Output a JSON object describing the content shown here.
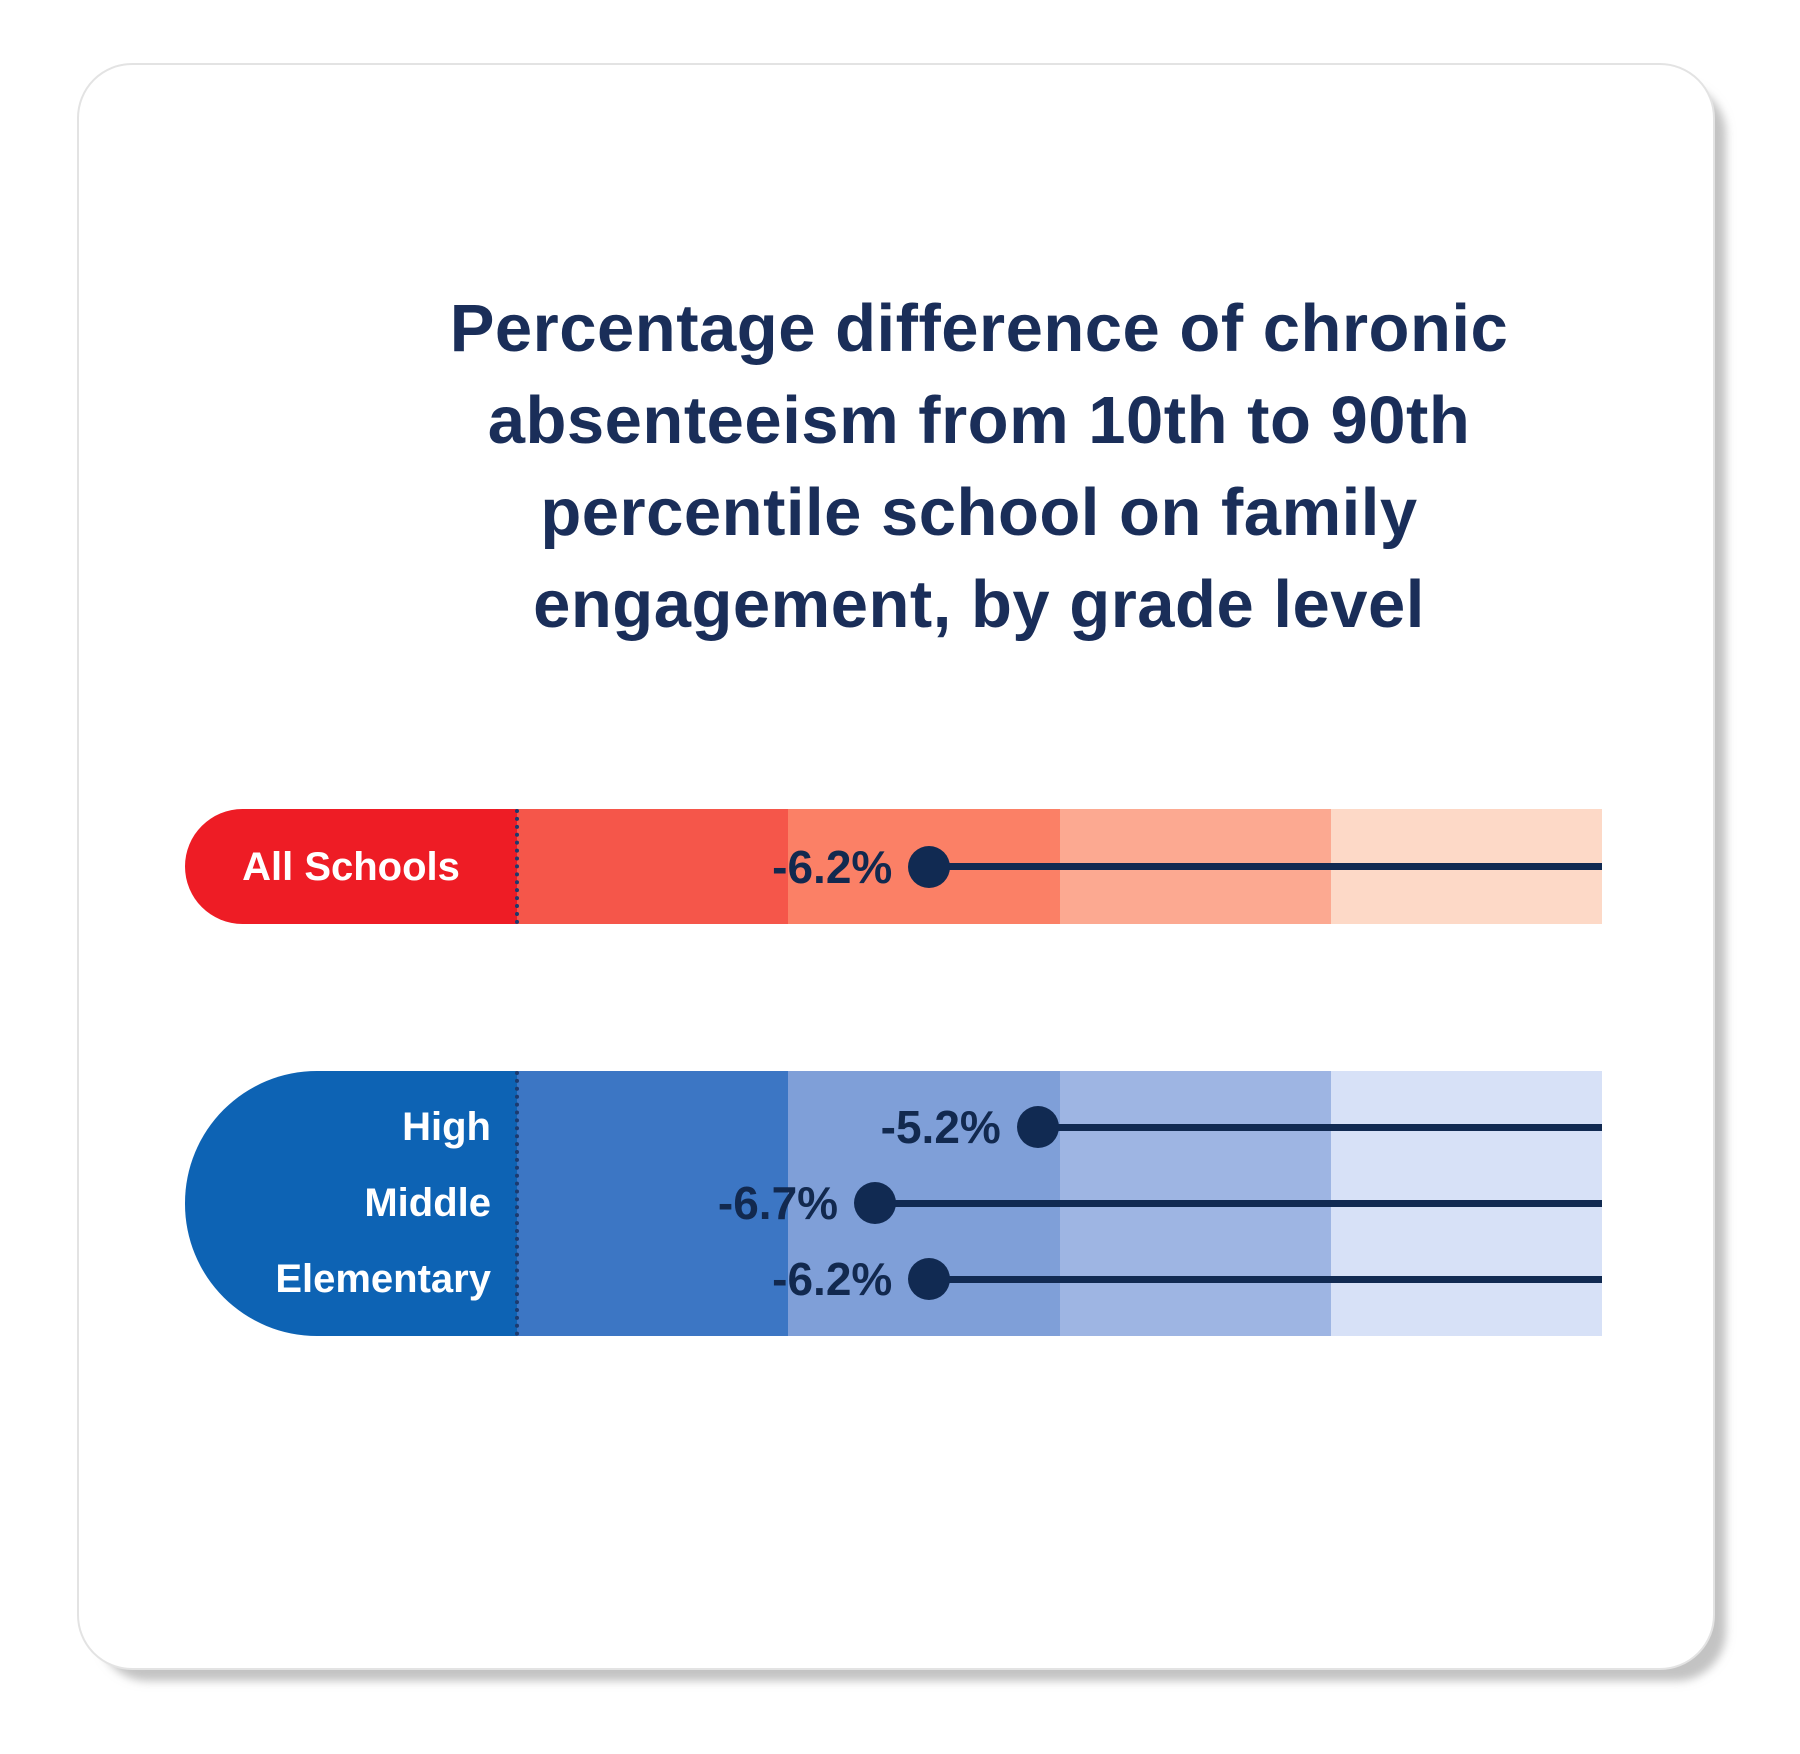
{
  "title": {
    "lines": [
      "Percentage difference of chronic",
      "absenteeism from 10th to 90th",
      "percentile school on family",
      "engagement, by grade level"
    ]
  },
  "colors": {
    "title_navy": "#1a2e59",
    "value_navy": "#12294f",
    "marker_navy": "#112a52",
    "zero_line_navy": "#1c3a6e",
    "card_background": "#ffffff",
    "red_scale": [
      "#ee1c25",
      "#f5564a",
      "#fb8066",
      "#fca991",
      "#fdd9c7"
    ],
    "blue_scale": [
      "#0d63b4",
      "#3c76c4",
      "#7f9fd8",
      "#9eb5e3",
      "#d7e1f7"
    ]
  },
  "chart_data": {
    "type": "bar",
    "subtype": "lollipop",
    "title": "Percentage difference of chronic absenteeism from 10th to 90th percentile school on family engagement, by grade level",
    "unit": "%",
    "axis": {
      "min": -10,
      "max": 0,
      "stripe_step": 2.5,
      "zero_marker": "dotted-line-at--10-cap-edge",
      "grid": "shaded-stripes"
    },
    "groups": [
      {
        "name": "all-schools",
        "color_scale": "red_scale",
        "label_position": "center-cap",
        "rows": [
          {
            "label": "All Schools",
            "value": -6.2,
            "value_label": "-6.2%"
          }
        ]
      },
      {
        "name": "by-grade-level",
        "color_scale": "blue_scale",
        "label_position": "row-right",
        "rows": [
          {
            "label": "High",
            "value": -5.2,
            "value_label": "-5.2%"
          },
          {
            "label": "Middle",
            "value": -6.7,
            "value_label": "-6.7%"
          },
          {
            "label": "Elementary",
            "value": -6.2,
            "value_label": "-6.2%"
          }
        ]
      }
    ]
  }
}
